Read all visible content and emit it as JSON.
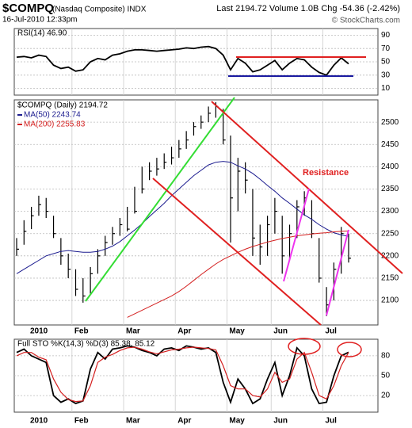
{
  "header": {
    "symbol": "$COMPQ",
    "name": "(Nasdaq Composite) INDX",
    "date": "16-Jul-2010 12:33pm",
    "quote": "Last 2194.72  Volume 1.0B  Chg -54.36 (-2.42%)",
    "source": "© StockCharts.com"
  },
  "chart_data": [
    {
      "type": "line",
      "title": "RSI(14) 46.90",
      "color": "#000000",
      "values": [
        57,
        58,
        56,
        60,
        58,
        45,
        40,
        42,
        36,
        38,
        50,
        55,
        53,
        60,
        62,
        66,
        68,
        68,
        67,
        66,
        67,
        68,
        69,
        71,
        70,
        72,
        73,
        70,
        60,
        38,
        55,
        48,
        35,
        38,
        45,
        52,
        38,
        48,
        55,
        53,
        42,
        34,
        30,
        45,
        56,
        46.9
      ],
      "ylim": [
        0,
        100
      ],
      "yticks": [
        10,
        30,
        50,
        70,
        90
      ],
      "grid": true
    },
    {
      "type": "ohlc",
      "title": "$COMPQ (Daily) 2194.72",
      "color": "#000000",
      "categories": [
        null,
        null,
        "2010",
        null,
        null,
        null,
        null,
        null,
        "Feb",
        null,
        null,
        null,
        null,
        null,
        null,
        "Mar",
        null,
        null,
        null,
        null,
        null,
        null,
        "Apr",
        null,
        null,
        null,
        null,
        null,
        null,
        "May",
        null,
        null,
        null,
        null,
        null,
        "Jun",
        null,
        null,
        null,
        null,
        null,
        null,
        "Jul",
        null,
        null,
        null
      ],
      "high": [
        2240,
        2280,
        2310,
        2335,
        2330,
        2290,
        2240,
        2205,
        2170,
        2150,
        2175,
        2215,
        2245,
        2265,
        2285,
        2310,
        2355,
        2400,
        2410,
        2420,
        2430,
        2445,
        2460,
        2480,
        2500,
        2515,
        2535,
        2545,
        2530,
        2470,
        2420,
        2410,
        2350,
        2270,
        2290,
        2330,
        2290,
        2270,
        2325,
        2345,
        2325,
        2240,
        2130,
        2185,
        2265,
        2250
      ],
      "low": [
        2200,
        2225,
        2260,
        2290,
        2285,
        2240,
        2180,
        2150,
        2110,
        2095,
        2115,
        2160,
        2200,
        2225,
        2245,
        2255,
        2295,
        2340,
        2370,
        2380,
        2395,
        2405,
        2420,
        2440,
        2470,
        2485,
        2500,
        2510,
        2450,
        2230,
        2300,
        2340,
        2200,
        2180,
        2200,
        2250,
        2160,
        2190,
        2240,
        2290,
        2240,
        2140,
        2065,
        2100,
        2160,
        2185
      ],
      "close": [
        2215,
        2255,
        2290,
        2315,
        2300,
        2250,
        2200,
        2170,
        2125,
        2110,
        2160,
        2200,
        2230,
        2250,
        2270,
        2260,
        2300,
        2350,
        2390,
        2395,
        2410,
        2420,
        2440,
        2460,
        2490,
        2500,
        2520,
        2535,
        2460,
        2330,
        2390,
        2370,
        2240,
        2220,
        2270,
        2300,
        2200,
        2250,
        2310,
        2330,
        2250,
        2150,
        2090,
        2170,
        2250,
        2194.72
      ],
      "series": [
        {
          "name": "MA(50) 2243.74",
          "color": "#1c1c8f",
          "values": [
            2160,
            2170,
            2180,
            2190,
            2200,
            2205,
            2210,
            2212,
            2210,
            2208,
            2208,
            2210,
            2215,
            2222,
            2232,
            2245,
            2258,
            2272,
            2288,
            2303,
            2318,
            2335,
            2350,
            2365,
            2380,
            2392,
            2404,
            2410,
            2412,
            2410,
            2402,
            2395,
            2385,
            2372,
            2358,
            2345,
            2330,
            2318,
            2305,
            2292,
            2282,
            2270,
            2260,
            2252,
            2247,
            2243.74
          ]
        },
        {
          "name": "MA(200) 2255.83",
          "color": "#d42020",
          "values": [
            null,
            null,
            null,
            null,
            null,
            null,
            null,
            null,
            null,
            null,
            null,
            null,
            null,
            null,
            null,
            2062,
            2070,
            2078,
            2086,
            2094,
            2102,
            2110,
            2120,
            2132,
            2145,
            2158,
            2170,
            2182,
            2192,
            2200,
            2208,
            2215,
            2221,
            2226,
            2231,
            2235,
            2239,
            2242,
            2245,
            2247,
            2249,
            2251,
            2252,
            2254,
            2255,
            2255.83
          ]
        }
      ],
      "annotation": "Resistance",
      "ylim": [
        2045,
        2550
      ],
      "yticks": [
        2100,
        2150,
        2200,
        2250,
        2300,
        2350,
        2400,
        2450,
        2500
      ],
      "grid": true
    },
    {
      "type": "line",
      "title": "Full STO %K(14,3) %D(3) 85.38, 85.12",
      "categories": [
        null,
        null,
        "2010",
        null,
        null,
        null,
        null,
        null,
        "Feb",
        null,
        null,
        null,
        null,
        null,
        null,
        "Mar",
        null,
        null,
        null,
        null,
        null,
        null,
        "Apr",
        null,
        null,
        null,
        null,
        null,
        null,
        "May",
        null,
        null,
        null,
        null,
        null,
        "Jun",
        null,
        null,
        null,
        null,
        null,
        null,
        "Jul",
        null,
        null,
        null
      ],
      "series": [
        {
          "color": "#000000",
          "values": [
            85,
            90,
            80,
            75,
            70,
            20,
            10,
            15,
            8,
            12,
            60,
            85,
            75,
            90,
            92,
            95,
            93,
            88,
            85,
            80,
            90,
            92,
            88,
            95,
            93,
            90,
            92,
            85,
            40,
            10,
            45,
            30,
            8,
            15,
            45,
            70,
            20,
            50,
            92,
            80,
            30,
            8,
            10,
            50,
            80,
            85.38
          ]
        },
        {
          "color": "#d42020",
          "values": [
            80,
            85,
            85,
            78,
            74,
            45,
            25,
            14,
            11,
            12,
            35,
            70,
            78,
            82,
            88,
            92,
            93,
            90,
            86,
            83,
            86,
            89,
            90,
            92,
            93,
            92,
            91,
            89,
            65,
            35,
            30,
            30,
            20,
            18,
            30,
            55,
            40,
            45,
            75,
            85,
            55,
            20,
            15,
            35,
            65,
            85.12
          ]
        }
      ],
      "ylim": [
        -5,
        105
      ],
      "yticks": [
        20,
        50,
        80
      ],
      "grid": true
    }
  ]
}
